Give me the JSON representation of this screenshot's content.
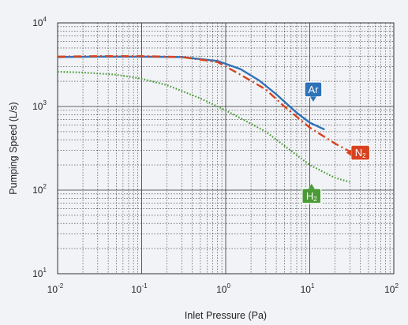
{
  "colors": {
    "background": "#f1f3f6",
    "frame": "#333333",
    "grid": "#333333",
    "Ar": "#2e72b8",
    "N2": "#d9421f",
    "H2": "#4a9a35"
  },
  "chart_data": {
    "type": "line",
    "title": "",
    "xlabel": "Inlet Pressure (Pa)",
    "ylabel": "Pumping Speed (L/s)",
    "xscale": "log",
    "yscale": "log",
    "xlim": [
      0.01,
      100
    ],
    "ylim": [
      10,
      10000
    ],
    "grid": "major and minor, dotted minor lines",
    "x_tick_labels": [
      {
        "base": "10",
        "exp": "-2"
      },
      {
        "base": "10",
        "exp": "-1"
      },
      {
        "base": "10",
        "exp": "0"
      },
      {
        "base": "10",
        "exp": "1"
      },
      {
        "base": "10",
        "exp": "2"
      }
    ],
    "y_tick_labels": [
      {
        "base": "10",
        "exp": "1"
      },
      {
        "base": "10",
        "exp": "2"
      },
      {
        "base": "10",
        "exp": "3"
      },
      {
        "base": "10",
        "exp": "4"
      }
    ],
    "series": [
      {
        "key": "Ar",
        "label": "Ar",
        "sub": "",
        "style": "solid",
        "color": "#2e72b8",
        "x": [
          0.01,
          0.03,
          0.1,
          0.3,
          0.8,
          1.5,
          2.5,
          4,
          7,
          10,
          15
        ],
        "y": [
          3900,
          3950,
          3950,
          3900,
          3500,
          2800,
          2050,
          1400,
          840,
          640,
          530
        ]
      },
      {
        "key": "N2",
        "label": "N",
        "sub": "2",
        "style": "dashdot",
        "color": "#d9421f",
        "x": [
          0.01,
          0.03,
          0.1,
          0.3,
          0.8,
          1.5,
          3,
          5,
          10,
          20,
          30
        ],
        "y": [
          3950,
          4000,
          4000,
          3900,
          3400,
          2400,
          1600,
          1000,
          560,
          360,
          290
        ]
      },
      {
        "key": "H2",
        "label": "H",
        "sub": "2",
        "style": "dotted",
        "color": "#4a9a35",
        "x": [
          0.01,
          0.02,
          0.05,
          0.1,
          0.2,
          0.5,
          1,
          3,
          10,
          20,
          30
        ],
        "y": [
          2600,
          2550,
          2400,
          2150,
          1800,
          1250,
          900,
          500,
          200,
          140,
          125
        ]
      }
    ],
    "annotations": [
      {
        "series": "Ar",
        "text": "Ar",
        "sub": "",
        "x": 11,
        "y": 1600,
        "color": "#2e72b8",
        "pointer": "down"
      },
      {
        "series": "N2",
        "text": "N",
        "sub": "2",
        "x": 40,
        "y": 280,
        "color": "#d9421f",
        "pointer": "left"
      },
      {
        "series": "H2",
        "text": "H",
        "sub": "2",
        "x": 10.5,
        "y": 85,
        "color": "#4a9a35",
        "pointer": "up"
      }
    ]
  }
}
